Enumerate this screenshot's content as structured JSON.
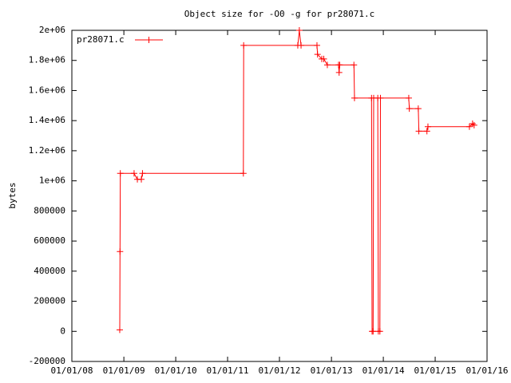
{
  "chart_data": {
    "type": "line",
    "title": "Object size for -O0 -g for pr28071.c",
    "y_label": "bytes",
    "legend": "top-left",
    "xlim": [
      "2008-01-01",
      "2016-01-01"
    ],
    "xticks": [
      {
        "value": "2008-01-01",
        "label": "01/01/08"
      },
      {
        "value": "2009-01-01",
        "label": "01/01/09"
      },
      {
        "value": "2010-01-01",
        "label": "01/01/10"
      },
      {
        "value": "2011-01-01",
        "label": "01/01/11"
      },
      {
        "value": "2012-01-01",
        "label": "01/01/12"
      },
      {
        "value": "2013-01-01",
        "label": "01/01/13"
      },
      {
        "value": "2014-01-01",
        "label": "01/01/14"
      },
      {
        "value": "2015-01-01",
        "label": "01/01/15"
      },
      {
        "value": "2016-01-01",
        "label": "01/01/16"
      }
    ],
    "ylim": [
      -200000,
      2000000
    ],
    "yticks": [
      -200000,
      0,
      200000,
      400000,
      600000,
      800000,
      {
        "value": 1000000,
        "label": "1e+06"
      },
      {
        "value": 1200000,
        "label": "1.2e+06"
      },
      {
        "value": 1400000,
        "label": "1.4e+06"
      },
      {
        "value": 1600000,
        "label": "1.6e+06"
      },
      {
        "value": 1800000,
        "label": "1.8e+06"
      },
      {
        "value": 2000000,
        "label": "2e+06"
      }
    ],
    "x": [
      "2008-12-03",
      "2008-12-05",
      "2008-12-07",
      "2009-03-14",
      "2009-04-06",
      "2009-05-04",
      "2009-05-12",
      "2011-04-22",
      "2011-04-24",
      "2012-05-09",
      "2012-05-20",
      "2012-06-01",
      "2012-09-21",
      "2012-09-25",
      "2012-10-25",
      "2012-11-08",
      "2012-12-03",
      "2013-02-20",
      "2013-02-24",
      "2013-02-28",
      "2013-06-08",
      "2013-06-12",
      "2013-10-10",
      "2013-10-14",
      "2013-10-21",
      "2013-10-25",
      "2013-11-23",
      "2013-11-27",
      "2013-12-08",
      "2013-12-12",
      "2014-06-29",
      "2014-07-03",
      "2014-09-04",
      "2014-09-08",
      "2014-11-04",
      "2014-11-11",
      "2015-08-30",
      "2015-09-21",
      "2015-10-02"
    ],
    "series": [
      {
        "name": "pr28071.c",
        "color": "#ff0000",
        "values": [
          10000,
          530000,
          1050000,
          1050000,
          1010000,
          1010000,
          1050000,
          1050000,
          1900000,
          1900000,
          2000000,
          1900000,
          1900000,
          1840000,
          1810000,
          1810000,
          1770000,
          1770000,
          1720000,
          1770000,
          1770000,
          1550000,
          1550000,
          0,
          0,
          1550000,
          1550000,
          0,
          0,
          1550000,
          1550000,
          1480000,
          1480000,
          1330000,
          1330000,
          1360000,
          1360000,
          1380000,
          1370000
        ]
      }
    ]
  }
}
